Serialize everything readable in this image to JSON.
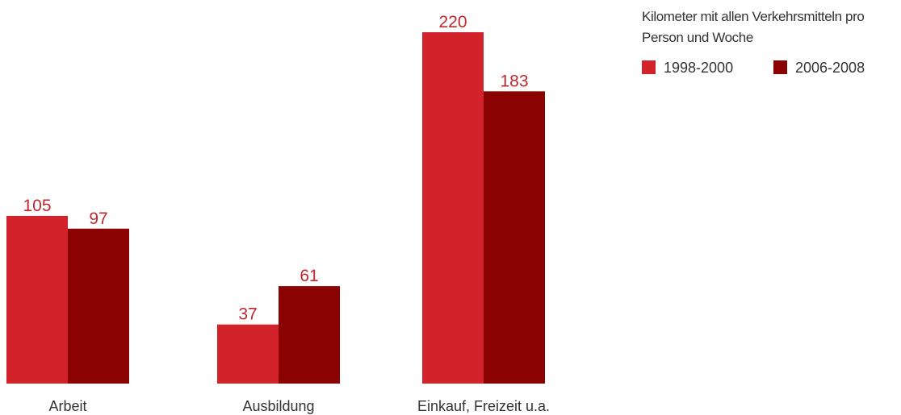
{
  "chart_data": {
    "type": "bar",
    "legend_title": "Kilometer mit allen Verkehrsmitteln pro Person und Woche",
    "categories": [
      "Arbeit",
      "Ausbildung",
      "Einkauf, Freizeit u.a."
    ],
    "series": [
      {
        "name": "1998-2000",
        "color": "#d2232b",
        "values": [
          105,
          37,
          220
        ]
      },
      {
        "name": "2006-2008",
        "color": "#8b0203",
        "values": [
          97,
          61,
          183
        ]
      }
    ],
    "legend": "top-right"
  }
}
